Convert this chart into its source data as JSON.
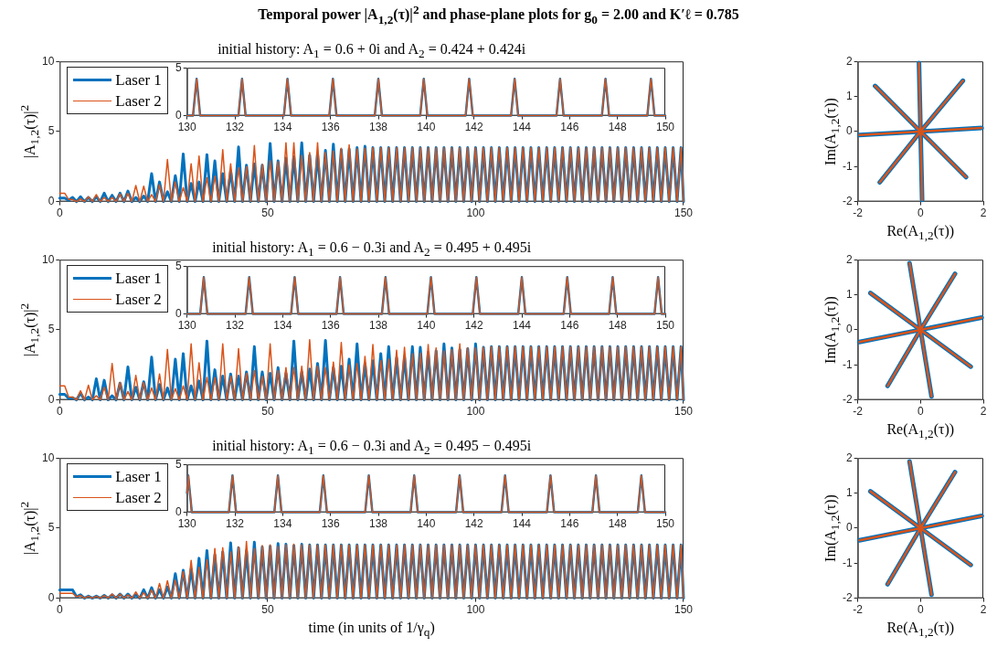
{
  "chart_data": [
    {
      "type": "line",
      "title": "Temporal power |A$_{1,2}$(τ)|$^{2}$ and phase-plane plots for g$_{0}$ = 2.00 and K′ℓ = 0.785",
      "subtitle": "initial history: A$_{1}$ = 0.6 + 0i and A$_{2}$ = 0.424 + 0.424i",
      "ylabel": "|A$_{1,2}$(τ)|$^{2}$",
      "xlim": [
        0,
        150
      ],
      "xticks": [
        0,
        50,
        100,
        150
      ],
      "ylim": [
        0,
        10
      ],
      "yticks": [
        0,
        5,
        10
      ],
      "legend": "top left",
      "x": [
        0,
        1.2,
        2.15,
        3.1,
        4.05,
        5.0,
        5.95,
        6.9,
        7.85,
        8.8,
        9.75,
        10.7,
        11.65,
        12.6,
        13.55,
        14.5,
        15.45,
        16.4,
        17.35,
        18.3,
        19.25,
        20.2,
        21.15,
        22.1,
        23.05,
        24.0,
        24.95,
        25.9,
        26.85,
        27.8,
        28.75,
        29.7,
        30.65,
        31.6,
        32.55,
        33.5,
        34.45,
        35.4,
        36.35,
        37.3,
        38.25,
        39.2,
        40.15,
        41.1,
        42.05,
        43.0,
        43.95,
        44.9,
        45.85,
        46.8,
        47.75,
        48.7,
        49.65,
        50.6,
        51.55,
        52.5,
        53.45,
        54.4,
        55.35,
        56.3,
        57.25,
        58.2,
        59.15,
        60.1,
        61.05,
        62.0,
        62.95,
        63.9,
        64.85,
        65.8,
        66.75,
        67.7,
        68.65,
        69.6,
        70.55,
        71.5,
        72.45,
        73.4,
        74.35,
        75.3,
        76.25,
        77.2,
        78.15,
        79.1,
        80.05,
        81.0,
        81.95,
        82.9,
        83.85,
        84.8,
        85.75,
        86.7,
        87.65,
        88.6,
        89.55,
        90.5,
        91.45,
        92.4,
        93.35,
        94.3,
        95.25,
        96.2,
        97.15,
        98.1,
        99.05,
        100.0,
        100.95,
        101.9,
        102.85,
        103.8,
        104.75,
        105.7,
        106.65,
        107.6,
        108.55,
        109.5,
        110.45,
        111.4,
        112.35,
        113.3,
        114.25,
        115.2,
        116.15,
        117.1,
        118.05,
        119.0,
        119.95,
        120.9,
        121.85,
        122.8,
        123.75,
        124.7,
        125.65,
        126.6,
        127.55,
        128.5,
        129.45,
        130.4,
        131.35,
        132.3,
        133.25,
        134.2,
        135.15,
        136.1,
        137.05,
        138.0,
        138.95,
        139.9,
        140.85,
        141.8,
        142.75,
        143.7,
        144.65,
        145.6,
        146.55,
        147.5,
        148.45,
        149.4,
        150
      ],
      "series": [
        {
          "name": "Laser 1",
          "color": "#0072bd",
          "values": [
            0.25,
            0.25,
            0.1,
            0.3,
            0,
            0.35,
            0,
            0.3,
            0,
            0.35,
            0,
            0.6,
            0,
            0.45,
            0,
            0.6,
            0,
            0.75,
            0,
            0.3,
            0,
            0.4,
            0,
            2.0,
            0,
            1.4,
            0,
            0.7,
            0,
            1.85,
            0,
            3.4,
            0,
            1.3,
            0,
            1.4,
            0,
            3.35,
            0,
            2.9,
            0,
            2.0,
            0,
            2.2,
            0,
            3.9,
            0,
            2.6,
            0,
            2.7,
            0,
            2.6,
            0,
            4.15,
            0,
            2.9,
            0,
            3.1,
            0,
            3.2,
            0,
            4.2,
            0,
            3.3,
            0,
            3.4,
            0,
            3.65,
            0,
            4.1,
            0,
            3.7,
            0,
            3.75,
            0,
            3.85,
            0,
            3.95,
            0,
            3.85,
            0,
            3.85,
            0,
            3.85,
            0,
            3.85,
            0,
            3.85,
            0,
            3.85,
            0,
            3.85,
            0,
            3.85,
            0,
            3.85,
            0,
            3.85,
            0,
            3.85,
            0,
            3.85,
            0,
            3.85,
            0,
            3.85,
            0,
            3.85,
            0,
            3.85,
            0,
            3.85,
            0,
            3.85,
            0,
            3.85,
            0,
            3.85,
            0,
            3.85,
            0,
            3.85,
            0,
            3.85,
            0,
            3.85,
            0,
            3.85,
            0,
            3.85,
            0,
            3.85,
            0,
            3.85,
            0,
            3.85,
            0,
            3.85,
            0,
            3.85,
            0,
            3.85,
            0,
            3.85,
            0,
            3.85,
            0,
            3.85,
            0,
            3.85,
            0,
            3.85,
            0,
            3.85,
            0,
            3.85,
            0,
            3.85,
            0
          ]
        },
        {
          "name": "Laser 2",
          "color": "#d95319",
          "values": [
            0.6,
            0.6,
            0.15,
            0.15,
            0,
            0.2,
            0,
            0.35,
            0,
            0.5,
            0,
            0.3,
            0,
            0.3,
            0,
            0.55,
            0,
            0.6,
            0,
            1.15,
            0,
            1.1,
            0,
            0.5,
            0,
            1.2,
            0,
            3.0,
            0,
            1.4,
            0,
            1.0,
            0,
            2.7,
            0,
            3.25,
            0,
            1.7,
            0,
            1.8,
            0,
            3.7,
            0,
            2.7,
            0,
            2.4,
            0,
            2.5,
            0,
            4.0,
            0,
            2.65,
            0,
            2.9,
            0,
            2.85,
            0,
            4.2,
            0,
            4.2,
            0,
            3.3,
            0,
            3.5,
            0,
            4.2,
            0,
            3.5,
            0,
            3.6,
            0,
            3.8,
            0,
            4.05,
            0,
            3.75,
            0,
            3.8,
            0,
            3.85,
            0,
            3.85,
            0,
            3.85,
            0,
            3.85,
            0,
            3.85,
            0,
            3.85,
            0,
            3.85,
            0,
            3.85,
            0,
            3.85,
            0,
            3.85,
            0,
            3.85,
            0,
            3.85,
            0,
            3.85,
            0,
            3.85,
            0,
            3.85,
            0,
            3.85,
            0,
            3.85,
            0,
            3.85,
            0,
            3.85,
            0,
            3.85,
            0,
            3.85,
            0,
            3.85,
            0,
            3.85,
            0,
            3.85,
            0,
            3.85,
            0,
            3.85,
            0,
            3.85,
            0,
            3.85,
            0,
            3.85,
            0,
            3.85,
            0,
            3.85,
            0,
            3.85,
            0,
            3.85,
            0,
            3.85,
            0,
            3.85,
            0,
            3.85,
            0,
            3.85,
            0,
            3.85,
            0,
            3.85,
            0,
            3.85,
            0
          ]
        }
      ]
    },
    {
      "type": "line",
      "xlim": [
        130,
        150
      ],
      "xticks": [
        130,
        132,
        134,
        136,
        138,
        140,
        142,
        144,
        146,
        148,
        150
      ],
      "ylim": [
        0,
        5
      ],
      "yticks": [
        0,
        5
      ],
      "x": [
        130,
        130.25,
        130.4,
        130.55,
        132.15,
        132.3,
        132.45,
        134.05,
        134.2,
        134.35,
        135.95,
        136.1,
        136.25,
        137.85,
        138.0,
        138.15,
        139.75,
        139.9,
        140.05,
        141.65,
        141.8,
        141.95,
        143.55,
        143.7,
        143.85,
        145.45,
        145.6,
        145.75,
        147.35,
        147.5,
        147.65,
        149.25,
        149.4,
        149.55,
        150
      ],
      "series": [
        {
          "color": "#0072bd",
          "values": [
            0,
            0,
            3.85,
            0,
            0,
            3.85,
            0,
            0,
            3.85,
            0,
            0,
            3.85,
            0,
            0,
            3.85,
            0,
            0,
            3.85,
            0,
            0,
            3.85,
            0,
            0,
            3.85,
            0,
            0,
            3.85,
            0,
            0,
            3.85,
            0,
            0,
            3.85,
            0,
            0
          ]
        },
        {
          "color": "#d95319",
          "values": [
            0,
            0,
            3.85,
            0,
            0,
            3.85,
            0,
            0,
            3.85,
            0,
            0,
            3.85,
            0,
            0,
            3.85,
            0,
            0,
            3.85,
            0,
            0,
            3.85,
            0,
            0,
            3.85,
            0,
            0,
            3.85,
            0,
            0,
            3.85,
            0,
            0,
            3.85,
            0,
            0
          ]
        }
      ]
    },
    {
      "type": "line",
      "xlabel": "Re(A$_{1,2}$(τ))",
      "ylabel": "Im(A$_{1,2}$(τ))",
      "xlim": [
        -2,
        2
      ],
      "xticks": [
        -2,
        0,
        2
      ],
      "ylim": [
        -2,
        2
      ],
      "yticks": [
        -2,
        -1,
        0,
        1,
        2
      ],
      "series": [
        {
          "color": "#0072bd",
          "x": [
            -0.05,
            0,
            0.05
          ],
          "values": [
            1.95,
            0,
            -1.95
          ]
        },
        {
          "color": "#0072bd",
          "x": [
            -1.3,
            0,
            1.35
          ],
          "values": [
            -1.45,
            0,
            1.45
          ]
        },
        {
          "color": "#0072bd",
          "x": [
            -1.95,
            0,
            1.95
          ],
          "values": [
            -0.1,
            0,
            0.1
          ]
        },
        {
          "color": "#0072bd",
          "x": [
            -1.45,
            0,
            1.45
          ],
          "values": [
            1.3,
            0,
            -1.3
          ]
        },
        {
          "color": "#d95319",
          "x": [
            -0.05,
            0,
            0.05
          ],
          "values": [
            1.95,
            0,
            -1.95
          ]
        },
        {
          "color": "#d95319",
          "x": [
            -1.3,
            0,
            1.35
          ],
          "values": [
            -1.45,
            0,
            1.45
          ]
        },
        {
          "color": "#d95319",
          "x": [
            -1.95,
            0,
            1.95
          ],
          "values": [
            -0.1,
            0,
            0.1
          ]
        },
        {
          "color": "#d95319",
          "x": [
            -1.45,
            0,
            1.45
          ],
          "values": [
            1.3,
            0,
            -1.3
          ]
        }
      ]
    },
    {
      "type": "line",
      "title": "initial history: A$_{1}$ = 0.6 − 0.3i and A$_{2}$ = 0.495 + 0.495i",
      "ylabel": "|A$_{1,2}$(τ)|$^{2}$",
      "xlim": [
        0,
        150
      ],
      "xticks": [
        0,
        50,
        100,
        150
      ],
      "ylim": [
        0,
        10
      ],
      "yticks": [
        0,
        5,
        10
      ],
      "legend": "top left",
      "x": [
        0,
        1.2,
        2.15,
        3.1,
        4.05,
        5.0,
        5.95,
        6.9,
        7.85,
        8.8,
        9.75,
        10.7,
        11.65,
        12.6,
        13.55,
        14.5,
        15.45,
        16.4,
        17.35,
        18.3,
        19.25,
        20.2,
        21.15,
        22.1,
        23.05,
        24.0,
        24.95,
        25.9,
        26.85,
        27.8,
        28.75,
        29.7,
        30.65,
        31.6,
        32.55,
        33.5,
        34.45,
        35.4,
        36.35,
        37.3,
        38.25,
        39.2,
        40.15,
        41.1,
        42.05,
        43.0,
        43.95,
        44.9,
        45.85,
        46.8,
        47.75,
        48.7,
        49.65,
        50.6,
        51.55,
        52.5,
        53.45,
        54.4,
        55.35,
        56.3,
        57.25,
        58.2,
        59.15,
        60.1,
        61.05,
        62.0,
        62.95,
        63.9,
        64.85,
        65.8,
        66.75,
        67.7,
        68.65,
        69.6,
        70.55,
        71.5,
        72.45,
        73.4,
        74.35,
        75.3,
        76.25,
        77.2,
        78.15,
        79.1,
        80.05,
        81.0,
        81.95,
        82.9,
        83.85,
        84.8,
        85.75,
        86.7,
        87.65,
        88.6,
        89.55,
        90.5,
        91.45,
        92.4,
        93.35,
        94.3,
        95.25,
        96.2,
        97.15,
        98.1,
        99.05,
        100.0,
        100.95,
        101.9,
        102.85,
        103.8,
        104.75,
        105.7,
        106.65,
        107.6,
        108.55,
        109.5,
        110.45,
        111.4,
        112.35,
        113.3,
        114.25,
        115.2,
        116.15,
        117.1,
        118.05,
        119.0,
        119.95,
        120.9,
        121.85,
        122.8,
        123.75,
        124.7,
        125.65,
        126.6,
        127.55,
        128.5,
        129.45,
        130.4,
        131.35,
        132.3,
        133.25,
        134.2,
        135.15,
        136.1,
        137.05,
        138.0,
        138.95,
        139.9,
        140.85,
        141.8,
        142.75,
        143.7,
        144.65,
        145.6,
        146.55,
        147.5,
        148.45,
        149.4,
        150
      ],
      "series": [
        {
          "name": "Laser 1",
          "color": "#0072bd",
          "values": [
            0.4,
            0.4,
            0.1,
            0.15,
            0,
            0.5,
            0,
            0.2,
            0,
            1.5,
            0,
            1.4,
            0,
            0.3,
            0,
            1.2,
            0,
            2.35,
            0,
            0.9,
            0,
            1.3,
            0,
            3.05,
            0,
            1.1,
            0,
            0.85,
            0,
            2.9,
            0,
            3.3,
            0,
            1.0,
            0,
            1.35,
            0,
            4.2,
            0,
            2.15,
            0,
            1.7,
            0,
            1.85,
            0,
            1.7,
            0,
            2.0,
            0,
            3.8,
            0,
            2.0,
            0,
            1.9,
            0,
            2.3,
            0,
            1.9,
            0,
            4.2,
            0,
            2.0,
            0,
            2.2,
            0,
            2.6,
            0,
            4.25,
            0,
            2.3,
            0,
            2.4,
            0,
            2.9,
            0,
            4.0,
            0,
            2.6,
            0,
            2.8,
            0,
            3.3,
            0,
            3.8,
            0,
            3.0,
            0,
            3.1,
            0,
            3.8,
            0,
            3.75,
            0,
            3.4,
            0,
            3.5,
            0,
            4.0,
            0,
            3.7,
            0,
            3.6,
            0,
            3.65,
            0,
            4.0,
            0,
            3.75,
            0,
            3.8,
            0,
            3.8,
            0,
            3.8,
            0,
            3.8,
            0,
            3.8,
            0,
            3.8,
            0,
            3.8,
            0,
            3.8,
            0,
            3.8,
            0,
            3.8,
            0,
            3.8,
            0,
            3.8,
            0,
            3.8,
            0,
            3.8,
            0,
            3.8,
            0,
            3.8,
            0,
            3.8,
            0,
            3.8,
            0,
            3.8,
            0,
            3.8,
            0,
            3.8,
            0,
            3.8,
            0,
            3.8,
            0,
            3.8,
            0,
            3.8,
            0
          ]
        },
        {
          "name": "Laser 2",
          "color": "#d95319",
          "values": [
            1.0,
            1.0,
            0.2,
            0.2,
            0,
            0.65,
            0,
            1.05,
            0,
            0.3,
            0,
            0.9,
            0,
            2.6,
            0,
            1.25,
            0,
            0.6,
            0,
            1.75,
            0,
            1.25,
            0,
            0.85,
            0,
            1.85,
            0,
            3.6,
            0,
            0.8,
            0,
            1.0,
            0,
            4.0,
            0,
            2.65,
            0,
            1.6,
            0,
            1.6,
            0,
            4.0,
            0,
            1.7,
            0,
            3.65,
            0,
            1.9,
            0,
            2.1,
            0,
            1.7,
            0,
            4.0,
            0,
            2.1,
            0,
            2.3,
            0,
            2.3,
            0,
            2.4,
            0,
            4.3,
            0,
            2.4,
            0,
            2.3,
            0,
            2.7,
            0,
            4.1,
            0,
            2.5,
            0,
            2.6,
            0,
            3.1,
            0,
            3.95,
            0,
            2.8,
            0,
            2.9,
            0,
            3.55,
            0,
            3.75,
            0,
            3.3,
            0,
            3.35,
            0,
            3.95,
            0,
            3.7,
            0,
            3.5,
            0,
            3.6,
            0,
            4.0,
            0,
            3.7,
            0,
            3.7,
            0,
            3.75,
            0,
            3.8,
            0,
            3.8,
            0,
            3.8,
            0,
            3.8,
            0,
            3.8,
            0,
            3.8,
            0,
            3.8,
            0,
            3.8,
            0,
            3.8,
            0,
            3.8,
            0,
            3.8,
            0,
            3.8,
            0,
            3.8,
            0,
            3.8,
            0,
            3.8,
            0,
            3.8,
            0,
            3.8,
            0,
            3.8,
            0,
            3.8,
            0,
            3.8,
            0,
            3.8,
            0,
            3.8,
            0,
            3.8,
            0,
            3.8,
            0,
            3.8,
            0
          ]
        }
      ]
    },
    {
      "type": "line",
      "xlim": [
        130,
        150
      ],
      "xticks": [
        130,
        132,
        134,
        136,
        138,
        140,
        142,
        144,
        146,
        148,
        150
      ],
      "ylim": [
        0,
        5
      ],
      "yticks": [
        0,
        5
      ],
      "x": [
        130,
        130.55,
        130.7,
        130.85,
        132.45,
        132.6,
        132.75,
        134.35,
        134.5,
        134.65,
        136.25,
        136.4,
        136.55,
        138.15,
        138.3,
        138.45,
        140.05,
        140.2,
        140.35,
        141.95,
        142.1,
        142.25,
        143.85,
        144.0,
        144.15,
        145.75,
        145.9,
        146.05,
        147.65,
        147.8,
        147.95,
        149.55,
        149.7,
        149.85,
        150
      ],
      "series": [
        {
          "color": "#0072bd",
          "values": [
            0,
            0,
            3.85,
            0,
            0,
            3.85,
            0,
            0,
            3.85,
            0,
            0,
            3.85,
            0,
            0,
            3.85,
            0,
            0,
            3.85,
            0,
            0,
            3.85,
            0,
            0,
            3.85,
            0,
            0,
            3.85,
            0,
            0,
            3.85,
            0,
            0,
            3.85,
            0,
            0
          ]
        },
        {
          "color": "#d95319",
          "values": [
            0,
            0,
            3.85,
            0,
            0,
            3.85,
            0,
            0,
            3.85,
            0,
            0,
            3.85,
            0,
            0,
            3.85,
            0,
            0,
            3.85,
            0,
            0,
            3.85,
            0,
            0,
            3.85,
            0,
            0,
            3.85,
            0,
            0,
            3.85,
            0,
            0,
            3.85,
            0,
            0
          ]
        }
      ]
    },
    {
      "type": "line",
      "xlabel": "Re(A$_{1,2}$(τ))",
      "ylabel": "Im(A$_{1,2}$(τ))",
      "xlim": [
        -2,
        2
      ],
      "xticks": [
        -2,
        0,
        2
      ],
      "ylim": [
        -2,
        2
      ],
      "yticks": [
        -2,
        -1,
        0,
        1,
        2
      ],
      "series": [
        {
          "color": "#0072bd",
          "x": [
            -0.35,
            0,
            0.35
          ],
          "values": [
            1.9,
            0,
            -1.9
          ]
        },
        {
          "color": "#0072bd",
          "x": [
            -1.05,
            0,
            1.1
          ],
          "values": [
            -1.6,
            0,
            1.6
          ]
        },
        {
          "color": "#0072bd",
          "x": [
            -1.95,
            0,
            1.95
          ],
          "values": [
            -0.35,
            0,
            0.35
          ]
        },
        {
          "color": "#0072bd",
          "x": [
            -1.6,
            0,
            1.6
          ],
          "values": [
            1.05,
            0,
            -1.05
          ]
        },
        {
          "color": "#d95319",
          "x": [
            -0.35,
            0,
            0.35
          ],
          "values": [
            1.9,
            0,
            -1.9
          ]
        },
        {
          "color": "#d95319",
          "x": [
            -1.05,
            0,
            1.1
          ],
          "values": [
            -1.6,
            0,
            1.6
          ]
        },
        {
          "color": "#d95319",
          "x": [
            -1.95,
            0,
            1.95
          ],
          "values": [
            -0.35,
            0,
            0.35
          ]
        },
        {
          "color": "#d95319",
          "x": [
            -1.6,
            0,
            1.6
          ],
          "values": [
            1.05,
            0,
            -1.05
          ]
        }
      ]
    },
    {
      "type": "line",
      "title": "initial history: A$_{1}$ = 0.6 − 0.3i and A$_{2}$ = 0.495 − 0.495i",
      "xlabel": "time (in units of 1/γ$_{q}$)",
      "ylabel": "|A$_{1,2}$(τ)|$^{2}$",
      "xlim": [
        0,
        150
      ],
      "xticks": [
        0,
        50,
        100,
        150
      ],
      "ylim": [
        0,
        10
      ],
      "yticks": [
        0,
        5,
        10
      ],
      "legend": "top left",
      "x": [
        0,
        1.2,
        2.15,
        3.1,
        4.05,
        5.0,
        5.95,
        6.9,
        7.85,
        8.8,
        9.75,
        10.7,
        11.65,
        12.6,
        13.55,
        14.5,
        15.45,
        16.4,
        17.35,
        18.3,
        19.25,
        20.2,
        21.15,
        22.1,
        23.05,
        24.0,
        24.95,
        25.9,
        26.85,
        27.8,
        28.75,
        29.7,
        30.65,
        31.6,
        32.55,
        33.5,
        34.45,
        35.4,
        36.35,
        37.3,
        38.25,
        39.2,
        40.15,
        41.1,
        42.05,
        43.0,
        43.95,
        44.9,
        45.85,
        46.8,
        47.75,
        48.7,
        49.65,
        50.6,
        51.55,
        52.5,
        53.45,
        54.4,
        55.35,
        56.3,
        57.25,
        58.2,
        59.15,
        60.1,
        61.05,
        62.0,
        62.95,
        63.9,
        64.85,
        65.8,
        66.75,
        67.7,
        68.65,
        69.6,
        70.55,
        71.5,
        72.45,
        73.4,
        74.35,
        75.3,
        76.25,
        77.2,
        78.15,
        79.1,
        80.05,
        81.0,
        81.95,
        82.9,
        83.85,
        84.8,
        85.75,
        86.7,
        87.65,
        88.6,
        89.55,
        90.5,
        91.45,
        92.4,
        93.35,
        94.3,
        95.25,
        96.2,
        97.15,
        98.1,
        99.05,
        100.0,
        100.95,
        101.9,
        102.85,
        103.8,
        104.75,
        105.7,
        106.65,
        107.6,
        108.55,
        109.5,
        110.45,
        111.4,
        112.35,
        113.3,
        114.25,
        115.2,
        116.15,
        117.1,
        118.05,
        119.0,
        119.95,
        120.9,
        121.85,
        122.8,
        123.75,
        124.7,
        125.65,
        126.6,
        127.55,
        128.5,
        129.45,
        130.4,
        131.35,
        132.3,
        133.25,
        134.2,
        135.15,
        136.1,
        137.05,
        138.0,
        138.95,
        139.9,
        140.85,
        141.8,
        142.75,
        143.7,
        144.65,
        145.6,
        146.55,
        147.5,
        148.45,
        149.4,
        150
      ],
      "series": [
        {
          "name": "Laser 1",
          "color": "#0072bd",
          "values": [
            0.6,
            0.6,
            0.6,
            0.6,
            0.1,
            0.25,
            0,
            0.15,
            0,
            0.15,
            0,
            0.2,
            0,
            0.25,
            0,
            0.3,
            0,
            0.3,
            0,
            0.25,
            0,
            0.6,
            0,
            0.75,
            0,
            0.6,
            0,
            0.8,
            0,
            1.75,
            0,
            2.0,
            0,
            2.1,
            0,
            2.85,
            0,
            3.4,
            0,
            3.1,
            0,
            3.3,
            0,
            3.95,
            0,
            3.6,
            0,
            3.4,
            0,
            4.0,
            0,
            3.65,
            0,
            3.7,
            0,
            3.9,
            0,
            3.85,
            0,
            3.75,
            0,
            3.85,
            0,
            3.8,
            0,
            3.8,
            0,
            3.8,
            0,
            3.8,
            0,
            3.8,
            0,
            3.8,
            0,
            3.8,
            0,
            3.8,
            0,
            3.8,
            0,
            3.8,
            0,
            3.8,
            0,
            3.8,
            0,
            3.8,
            0,
            3.8,
            0,
            3.8,
            0,
            3.8,
            0,
            3.8,
            0,
            3.8,
            0,
            3.8,
            0,
            3.8,
            0,
            3.8,
            0,
            3.8,
            0,
            3.8,
            0,
            3.8,
            0,
            3.8,
            0,
            3.8,
            0,
            3.8,
            0,
            3.8,
            0,
            3.8,
            0,
            3.8,
            0,
            3.8,
            0,
            3.8,
            0,
            3.8,
            0,
            3.8,
            0,
            3.8,
            0,
            3.8,
            0,
            3.8,
            0,
            3.8,
            0,
            3.8,
            0,
            3.8,
            0,
            3.8,
            0,
            3.8,
            0,
            3.8,
            0,
            3.8,
            0,
            3.8,
            0,
            3.8,
            0,
            3.8,
            0,
            3.8,
            0
          ]
        },
        {
          "name": "Laser 2",
          "color": "#d95319",
          "values": [
            0.35,
            0.35,
            0.35,
            0.35,
            0.1,
            0.2,
            0,
            0.15,
            0,
            0.15,
            0,
            0.2,
            0,
            0.3,
            0,
            0.3,
            0,
            0.25,
            0,
            0.45,
            0,
            0.4,
            0,
            0.6,
            0,
            1.05,
            0,
            1.25,
            0,
            1.3,
            0,
            1.9,
            0,
            2.7,
            0,
            2.2,
            0,
            2.75,
            0,
            3.55,
            0,
            3.6,
            0,
            3.3,
            0,
            3.65,
            0,
            4.05,
            0,
            3.55,
            0,
            3.75,
            0,
            3.8,
            0,
            3.7,
            0,
            3.8,
            0,
            3.85,
            0,
            3.8,
            0,
            3.8,
            0,
            3.8,
            0,
            3.8,
            0,
            3.8,
            0,
            3.8,
            0,
            3.8,
            0,
            3.8,
            0,
            3.8,
            0,
            3.8,
            0,
            3.8,
            0,
            3.8,
            0,
            3.8,
            0,
            3.8,
            0,
            3.8,
            0,
            3.8,
            0,
            3.8,
            0,
            3.8,
            0,
            3.8,
            0,
            3.8,
            0,
            3.8,
            0,
            3.8,
            0,
            3.8,
            0,
            3.8,
            0,
            3.8,
            0,
            3.8,
            0,
            3.8,
            0,
            3.8,
            0,
            3.8,
            0,
            3.8,
            0,
            3.8,
            0,
            3.8,
            0,
            3.8,
            0,
            3.8,
            0,
            3.8,
            0,
            3.8,
            0,
            3.8,
            0,
            3.8,
            0,
            3.8,
            0,
            3.8,
            0,
            3.8,
            0,
            3.8,
            0,
            3.8,
            0,
            3.8,
            0,
            3.8,
            0,
            3.8,
            0,
            3.8,
            0,
            3.8,
            0,
            3.8,
            0
          ]
        }
      ]
    },
    {
      "type": "line",
      "xlim": [
        130,
        150
      ],
      "xticks": [
        130,
        132,
        134,
        136,
        138,
        140,
        142,
        144,
        146,
        148,
        150
      ],
      "ylim": [
        0,
        5
      ],
      "yticks": [
        0,
        5
      ],
      "x": [
        130,
        130.05,
        130.2,
        131.75,
        131.9,
        132.05,
        133.65,
        133.8,
        133.95,
        135.55,
        135.7,
        135.85,
        137.45,
        137.6,
        137.75,
        139.35,
        139.5,
        139.65,
        141.25,
        141.4,
        141.55,
        143.15,
        143.3,
        143.45,
        145.05,
        145.2,
        145.35,
        146.95,
        147.1,
        147.25,
        148.85,
        149.0,
        149.15,
        150
      ],
      "series": [
        {
          "color": "#0072bd",
          "values": [
            2.0,
            3.85,
            0,
            0,
            3.85,
            0,
            0,
            3.85,
            0,
            0,
            3.85,
            0,
            0,
            3.85,
            0,
            0,
            3.85,
            0,
            0,
            3.85,
            0,
            0,
            3.85,
            0,
            0,
            3.85,
            0,
            0,
            3.85,
            0,
            0,
            3.85,
            0,
            0
          ]
        },
        {
          "color": "#d95319",
          "values": [
            2.0,
            3.85,
            0,
            0,
            3.85,
            0,
            0,
            3.85,
            0,
            0,
            3.85,
            0,
            0,
            3.85,
            0,
            0,
            3.85,
            0,
            0,
            3.85,
            0,
            0,
            3.85,
            0,
            0,
            3.85,
            0,
            0,
            3.85,
            0,
            0,
            3.85,
            0,
            0
          ]
        }
      ]
    },
    {
      "type": "line",
      "xlabel": "Re(A$_{1,2}$(τ))",
      "ylabel": "Im(A$_{1,2}$(τ))",
      "xlim": [
        -2,
        2
      ],
      "xticks": [
        -2,
        0,
        2
      ],
      "ylim": [
        -2,
        2
      ],
      "yticks": [
        -2,
        -1,
        0,
        1,
        2
      ],
      "series": [
        {
          "color": "#0072bd",
          "x": [
            -0.35,
            0,
            0.35
          ],
          "values": [
            1.9,
            0,
            -1.9
          ]
        },
        {
          "color": "#0072bd",
          "x": [
            -1.05,
            0,
            1.1
          ],
          "values": [
            -1.6,
            0,
            1.6
          ]
        },
        {
          "color": "#0072bd",
          "x": [
            -1.95,
            0,
            1.95
          ],
          "values": [
            -0.35,
            0,
            0.35
          ]
        },
        {
          "color": "#0072bd",
          "x": [
            -1.6,
            0,
            1.6
          ],
          "values": [
            1.05,
            0,
            -1.05
          ]
        },
        {
          "color": "#d95319",
          "x": [
            -0.35,
            0,
            0.35
          ],
          "values": [
            1.9,
            0,
            -1.9
          ]
        },
        {
          "color": "#d95319",
          "x": [
            -1.05,
            0,
            1.1
          ],
          "values": [
            -1.6,
            0,
            1.6
          ]
        },
        {
          "color": "#d95319",
          "x": [
            -1.95,
            0,
            1.95
          ],
          "values": [
            -0.35,
            0,
            0.35
          ]
        },
        {
          "color": "#d95319",
          "x": [
            -1.6,
            0,
            1.6
          ],
          "values": [
            1.05,
            0,
            -1.05
          ]
        }
      ]
    }
  ]
}
